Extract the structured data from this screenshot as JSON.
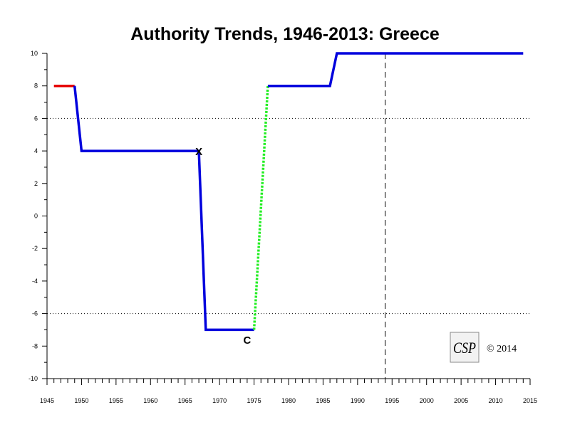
{
  "chart_data": {
    "type": "line",
    "title": "Authority Trends, 1946-2013: Greece",
    "xlim": [
      1945,
      2015
    ],
    "ylim": [
      -10,
      10
    ],
    "x_ticks": [
      "1945",
      "1950",
      "1955",
      "1960",
      "1965",
      "1970",
      "1975",
      "1980",
      "1985",
      "1990",
      "1995",
      "2000",
      "2005",
      "2010",
      "2015"
    ],
    "y_ticks": [
      "10",
      "8",
      "6",
      "4",
      "2",
      "0",
      "-2",
      "-4",
      "-6",
      "-8",
      "-10"
    ],
    "grid": false,
    "reference_lines": {
      "horizontal_dotted": [
        6,
        -6
      ],
      "vertical_dashed": [
        1994
      ]
    },
    "series": [
      {
        "style": "solid",
        "color": "#e60000",
        "points": [
          [
            1946,
            8
          ],
          [
            1949,
            8
          ]
        ]
      },
      {
        "style": "solid",
        "color": "#0000dd",
        "points": [
          [
            1949,
            8
          ],
          [
            1950,
            4
          ],
          [
            1967,
            4
          ],
          [
            1968,
            -7
          ],
          [
            1975,
            -7
          ]
        ]
      },
      {
        "style": "dotted",
        "color": "#22ee22",
        "points": [
          [
            1975,
            -7
          ],
          [
            1977,
            8
          ]
        ]
      },
      {
        "style": "solid",
        "color": "#0000dd",
        "points": [
          [
            1977,
            8
          ],
          [
            1986,
            8
          ],
          [
            1987,
            10
          ],
          [
            2014,
            10
          ]
        ]
      }
    ],
    "annotations": [
      {
        "text": "X",
        "x": 1967,
        "y": 4
      },
      {
        "text": "C",
        "x": 1974,
        "y": -7.6
      }
    ]
  },
  "logo": {
    "text": "CSP"
  },
  "copyright": "© 2014"
}
